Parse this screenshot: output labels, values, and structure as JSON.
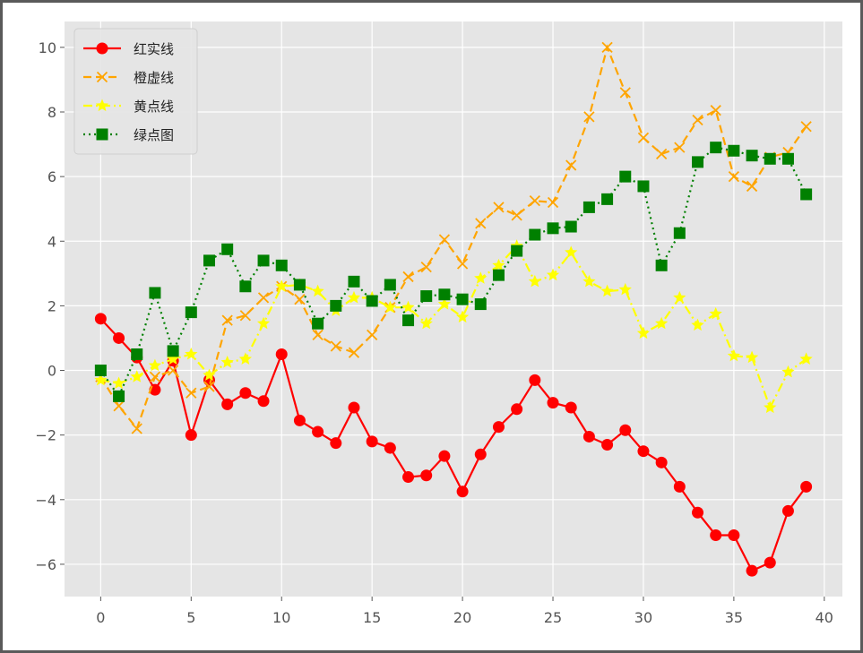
{
  "chart_data": {
    "type": "line",
    "title": "",
    "xlabel": "",
    "ylabel": "",
    "xlim": [
      -2,
      41
    ],
    "ylim": [
      -7,
      10.8
    ],
    "xticks": [
      0,
      5,
      10,
      15,
      20,
      25,
      30,
      35,
      40
    ],
    "yticks": [
      -6,
      -4,
      -2,
      0,
      2,
      4,
      6,
      8,
      10
    ],
    "xtick_labels": [
      "0",
      "5",
      "10",
      "15",
      "20",
      "25",
      "30",
      "35",
      "40"
    ],
    "ytick_labels": [
      "−6",
      "−4",
      "−2",
      "0",
      "2",
      "4",
      "6",
      "8",
      "10"
    ],
    "grid": true,
    "legend_position": "top-left",
    "x": [
      0,
      1,
      2,
      3,
      4,
      5,
      6,
      7,
      8,
      9,
      10,
      11,
      12,
      13,
      14,
      15,
      16,
      17,
      18,
      19,
      20,
      21,
      22,
      23,
      24,
      25,
      26,
      27,
      28,
      29,
      30,
      31,
      32,
      33,
      34,
      35,
      36,
      37,
      38,
      39
    ],
    "series": [
      {
        "name": "红实线",
        "color": "#ff0000",
        "linestyle": "solid",
        "marker": "circle",
        "values": [
          1.6,
          1.0,
          0.4,
          -0.6,
          0.3,
          -2.0,
          -0.3,
          -1.05,
          -0.7,
          -0.95,
          0.5,
          -1.55,
          -1.9,
          -2.25,
          -1.15,
          -2.2,
          -2.4,
          -3.3,
          -3.25,
          -2.65,
          -3.75,
          -2.6,
          -1.75,
          -1.2,
          -0.3,
          -1.0,
          -1.15,
          -2.05,
          -2.3,
          -1.85,
          -2.5,
          -2.85,
          -3.6,
          -4.4,
          -5.1,
          -5.1,
          -6.2,
          -5.95,
          -4.35,
          -3.6
        ]
      },
      {
        "name": "橙虚线",
        "color": "#ffa500",
        "linestyle": "dashed",
        "marker": "x",
        "values": [
          -0.2,
          -1.1,
          -1.8,
          -0.2,
          0.0,
          -0.7,
          -0.5,
          1.55,
          1.7,
          2.25,
          2.6,
          2.2,
          1.1,
          0.75,
          0.55,
          1.1,
          1.95,
          2.9,
          3.2,
          4.05,
          3.3,
          4.55,
          5.05,
          4.8,
          5.25,
          5.2,
          6.35,
          7.85,
          10.0,
          8.6,
          7.2,
          6.7,
          6.9,
          7.75,
          8.05,
          6.0,
          5.7,
          6.6,
          6.75,
          7.55
        ]
      },
      {
        "name": "黄点线",
        "color": "#ffff00",
        "linestyle": "dashdot",
        "marker": "star",
        "values": [
          -0.3,
          -0.4,
          -0.2,
          0.15,
          0.35,
          0.5,
          -0.15,
          0.25,
          0.35,
          1.45,
          2.6,
          2.65,
          2.45,
          1.85,
          2.25,
          2.25,
          1.95,
          1.95,
          1.45,
          2.05,
          1.65,
          2.85,
          3.25,
          3.85,
          2.75,
          2.95,
          3.65,
          2.75,
          2.45,
          2.5,
          1.15,
          1.45,
          2.25,
          1.4,
          1.75,
          0.45,
          0.4,
          -1.15,
          -0.05,
          0.35
        ]
      },
      {
        "name": "绿点图",
        "color": "#008000",
        "linestyle": "dotted",
        "marker": "square",
        "values": [
          0.0,
          -0.8,
          0.5,
          2.4,
          0.6,
          1.8,
          3.4,
          3.75,
          2.6,
          3.4,
          3.25,
          2.65,
          1.45,
          2.0,
          2.75,
          2.15,
          2.65,
          1.55,
          2.3,
          2.35,
          2.2,
          2.05,
          2.95,
          3.7,
          4.2,
          4.4,
          4.45,
          5.05,
          5.3,
          6.0,
          5.7,
          3.25,
          4.25,
          6.45,
          6.9,
          6.8,
          6.65,
          6.55,
          6.55,
          5.45
        ]
      }
    ]
  }
}
